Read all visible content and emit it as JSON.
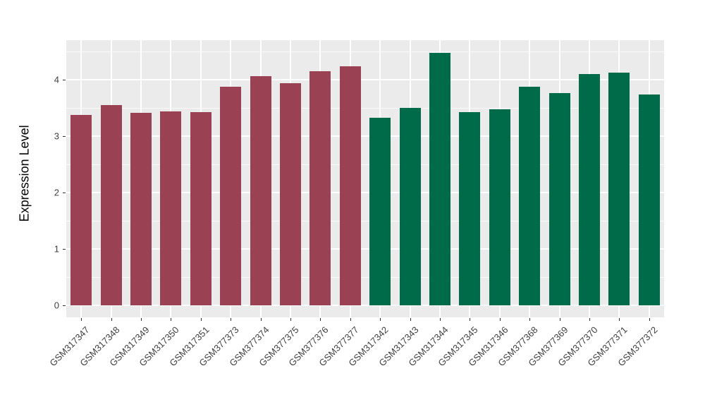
{
  "figure": {
    "background_color": "#FFFFFF",
    "panel_background_color": "#EBEBEB",
    "gridline_color": "#FFFFFF",
    "axis_text_color": "#404040",
    "axis_title_color": "#000000"
  },
  "chart_data": {
    "type": "bar",
    "title": "",
    "xlabel": "",
    "ylabel": "Expression Level",
    "ylim": [
      -0.21,
      4.7
    ],
    "yticks": [
      0,
      1,
      2,
      3,
      4
    ],
    "yminor_ticks": [
      0.5,
      1.5,
      2.5,
      3.5,
      4.5
    ],
    "grid": "horizontal major+minor white gridlines, vertical major white gridline at each bar center, ggplot-style gray panel",
    "legend_position": "none",
    "categories": [
      "GSM317347",
      "GSM317348",
      "GSM317349",
      "GSM317350",
      "GSM317351",
      "GSM377373",
      "GSM377374",
      "GSM377375",
      "GSM377376",
      "GSM377377",
      "GSM317342",
      "GSM317343",
      "GSM317344",
      "GSM317345",
      "GSM317346",
      "GSM377368",
      "GSM377369",
      "GSM377370",
      "GSM377371",
      "GSM377372"
    ],
    "values": [
      3.37,
      3.55,
      3.41,
      3.44,
      3.42,
      3.88,
      4.06,
      3.94,
      4.15,
      4.24,
      3.33,
      3.5,
      4.48,
      3.43,
      3.48,
      3.88,
      3.76,
      4.1,
      4.13,
      3.74
    ],
    "bar_group_index": [
      0,
      0,
      0,
      0,
      0,
      0,
      0,
      0,
      0,
      0,
      1,
      1,
      1,
      1,
      1,
      1,
      1,
      1,
      1,
      1
    ],
    "group_colors": [
      "#9A4253",
      "#006B48"
    ]
  }
}
